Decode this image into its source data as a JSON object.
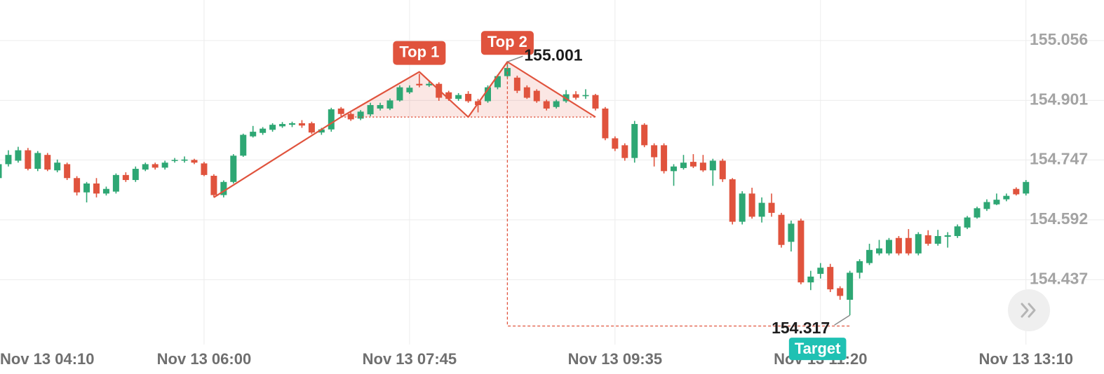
{
  "chart_data": {
    "type": "candlestick",
    "categories": [
      "Nov 13 04:10",
      null,
      null,
      null,
      null,
      null,
      null,
      null,
      null,
      null,
      null,
      null,
      null,
      null,
      null,
      null,
      null,
      null,
      null,
      null,
      null,
      "Nov 13 06:00",
      null,
      null,
      null,
      null,
      null,
      null,
      null,
      null,
      null,
      null,
      null,
      null,
      null,
      null,
      null,
      null,
      null,
      null,
      null,
      null,
      "Nov 13 07:45",
      null,
      null,
      null,
      null,
      null,
      null,
      null,
      null,
      null,
      null,
      null,
      null,
      null,
      null,
      null,
      null,
      null,
      null,
      null,
      null,
      "Nov 13 09:35",
      null,
      null,
      null,
      null,
      null,
      null,
      null,
      null,
      null,
      null,
      null,
      null,
      null,
      null,
      null,
      null,
      null,
      null,
      null,
      null,
      "Nov 13 11:20",
      null,
      null,
      null,
      null,
      null,
      null,
      null,
      null,
      null,
      null,
      null,
      null,
      null,
      null,
      null,
      null,
      null,
      null,
      null,
      null,
      "Nov 13 13:10"
    ],
    "open": [
      154.7,
      154.736,
      154.745,
      154.772,
      154.724,
      154.76,
      154.72,
      154.736,
      154.7,
      154.663,
      154.686,
      154.66,
      154.665,
      154.708,
      154.695,
      154.722,
      154.736,
      154.727,
      154.745,
      154.745,
      154.747,
      154.738,
      154.706,
      154.656,
      154.69,
      154.758,
      154.808,
      154.817,
      154.825,
      154.834,
      154.838,
      154.842,
      154.842,
      154.818,
      154.826,
      154.88,
      154.866,
      154.854,
      154.865,
      154.88,
      154.88,
      154.901,
      154.922,
      154.944,
      154.94,
      154.944,
      154.922,
      154.905,
      154.918,
      154.899,
      154.899,
      154.935,
      154.964,
      154.96,
      154.935,
      154.926,
      154.899,
      154.884,
      154.899,
      154.917,
      154.912,
      154.915,
      154.88,
      154.803,
      154.785,
      154.752,
      154.838,
      154.785,
      154.785,
      154.718,
      154.726,
      154.742,
      154.74,
      154.72,
      154.745,
      154.697,
      154.587,
      154.66,
      154.6,
      154.636,
      154.605,
      154.535,
      154.59,
      154.43,
      154.452,
      154.47,
      154.415,
      154.385,
      154.455,
      154.48,
      154.505,
      154.505,
      154.545,
      154.545,
      154.505,
      154.552,
      154.53,
      154.548,
      154.55,
      154.572,
      154.598,
      154.62,
      154.632,
      154.645,
      154.672,
      154.66
    ],
    "high": [
      154.745,
      154.772,
      154.781,
      154.778,
      154.77,
      154.765,
      154.748,
      154.74,
      154.705,
      154.69,
      154.7,
      154.678,
      154.712,
      154.715,
      154.73,
      154.74,
      154.74,
      154.745,
      154.752,
      154.756,
      154.75,
      154.742,
      154.71,
      154.694,
      154.762,
      154.815,
      154.835,
      154.832,
      154.842,
      154.845,
      154.846,
      154.85,
      154.846,
      154.83,
      154.882,
      154.884,
      154.87,
      154.876,
      154.895,
      154.895,
      154.906,
      154.94,
      154.94,
      154.97,
      154.95,
      154.948,
      154.926,
      154.92,
      154.925,
      154.905,
      154.94,
      154.968,
      155.001,
      154.965,
      154.94,
      154.93,
      154.903,
      154.903,
      154.928,
      154.925,
      154.93,
      154.918,
      154.884,
      154.808,
      154.79,
      154.848,
      154.842,
      154.79,
      154.79,
      154.736,
      154.76,
      154.762,
      154.76,
      154.75,
      154.75,
      154.7,
      154.666,
      154.675,
      154.65,
      154.66,
      154.61,
      154.59,
      154.595,
      154.46,
      154.48,
      154.478,
      154.42,
      154.46,
      154.49,
      154.53,
      154.54,
      154.545,
      154.55,
      154.568,
      154.56,
      154.565,
      154.566,
      154.56,
      154.58,
      154.602,
      154.626,
      154.645,
      154.66,
      154.66,
      154.676,
      154.695
    ],
    "low": [
      154.69,
      154.73,
      154.74,
      154.72,
      154.718,
      154.718,
      154.715,
      154.695,
      154.655,
      154.637,
      154.65,
      154.655,
      154.66,
      154.69,
      154.69,
      154.718,
      154.722,
      154.722,
      154.74,
      154.74,
      154.736,
      154.705,
      154.65,
      154.65,
      154.686,
      154.755,
      154.805,
      154.812,
      154.82,
      154.83,
      154.832,
      154.83,
      154.814,
      154.812,
      154.82,
      154.86,
      154.848,
      154.85,
      154.86,
      154.875,
      154.876,
      154.898,
      154.918,
      154.935,
      154.936,
      154.9,
      154.9,
      154.9,
      154.895,
      154.87,
      154.895,
      154.93,
      154.96,
      154.92,
      154.905,
      154.895,
      154.875,
      154.88,
      154.895,
      154.903,
      154.905,
      154.875,
      154.798,
      154.77,
      154.745,
      154.74,
      154.78,
      154.73,
      154.712,
      154.68,
      154.722,
      154.726,
      154.716,
      154.68,
      154.69,
      154.58,
      154.58,
      154.595,
      154.585,
      154.6,
      154.52,
      154.51,
      154.425,
      154.41,
      154.44,
      154.405,
      154.385,
      154.345,
      154.44,
      154.475,
      154.5,
      154.5,
      154.5,
      154.5,
      154.5,
      154.525,
      154.525,
      154.52,
      154.545,
      154.568,
      154.595,
      154.615,
      154.63,
      154.64,
      154.655,
      154.655
    ],
    "close": [
      154.736,
      154.76,
      154.772,
      154.724,
      154.765,
      154.722,
      154.74,
      154.7,
      154.663,
      154.686,
      154.66,
      154.672,
      154.708,
      154.695,
      154.724,
      154.736,
      154.727,
      154.74,
      154.747,
      154.748,
      154.74,
      154.708,
      154.656,
      154.69,
      154.758,
      154.812,
      154.82,
      154.828,
      154.838,
      154.84,
      154.842,
      154.836,
      154.818,
      154.826,
      154.878,
      154.866,
      154.852,
      154.872,
      154.889,
      154.889,
      154.901,
      154.935,
      154.934,
      154.94,
      154.944,
      154.908,
      154.905,
      154.915,
      154.899,
      154.889,
      154.935,
      154.964,
      154.985,
      154.926,
      154.908,
      154.899,
      154.88,
      154.899,
      154.917,
      154.908,
      154.915,
      154.88,
      154.803,
      154.776,
      154.752,
      154.84,
      154.785,
      154.754,
      154.718,
      154.73,
      154.74,
      154.73,
      154.72,
      154.745,
      154.697,
      154.587,
      154.66,
      154.6,
      154.636,
      154.61,
      154.527,
      154.582,
      154.43,
      154.445,
      154.468,
      154.412,
      154.395,
      154.455,
      154.485,
      154.514,
      154.518,
      154.54,
      154.505,
      154.505,
      154.555,
      154.53,
      154.55,
      154.552,
      154.575,
      154.598,
      154.622,
      154.638,
      154.644,
      154.654,
      154.658,
      154.69
    ],
    "up_color": "#2ea774",
    "down_color": "#e0533d",
    "ylim": [
      154.269,
      155.161
    ],
    "yticks": [
      155.056,
      154.901,
      154.747,
      154.592,
      154.437
    ],
    "grid": true,
    "pattern": {
      "x": [
        22,
        35,
        43,
        48,
        52,
        61
      ],
      "y": [
        154.65,
        154.858,
        154.975,
        154.858,
        155.001,
        154.858
      ],
      "neckline": 154.858,
      "top_labels": [
        "Top 1",
        "Top 2"
      ],
      "color": "#e0533d"
    },
    "target": {
      "label": "Target",
      "value": 154.317,
      "x": 87,
      "color": "#1fc1b3"
    }
  }
}
